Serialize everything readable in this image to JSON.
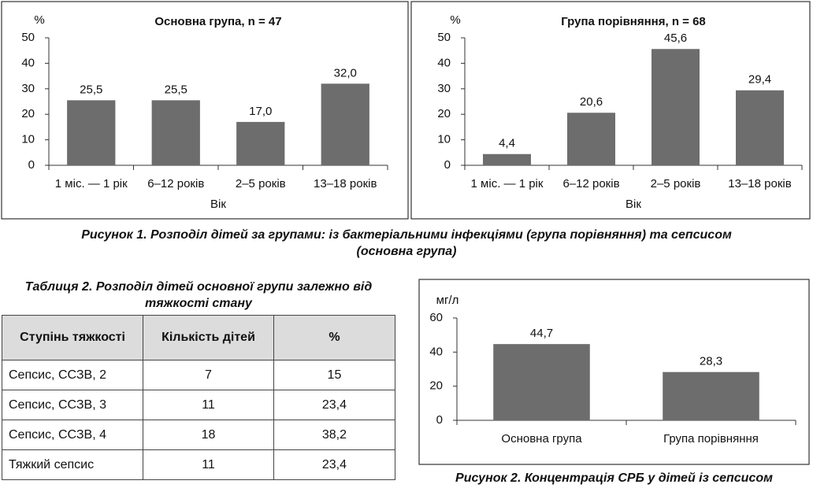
{
  "chart_data": [
    {
      "type": "bar",
      "title": "Основна група, n = 47",
      "y_label": "%",
      "x_label": "Вік",
      "categories": [
        "1 міс. — 1 рік",
        "6–12 років",
        "2–5 років",
        "13–18 років"
      ],
      "values": [
        25.5,
        25.5,
        17.0,
        32.0
      ],
      "value_labels": [
        "25,5",
        "25,5",
        "17,0",
        "32,0"
      ],
      "color": "#6d6d6d",
      "ylim": [
        0,
        50
      ],
      "yticks": [
        0,
        10,
        20,
        30,
        40,
        50
      ]
    },
    {
      "type": "bar",
      "title": "Група порівняння, n = 68",
      "y_label": "%",
      "x_label": "Вік",
      "categories": [
        "1 міс. — 1 рік",
        "6–12 років",
        "2–5 років",
        "13–18 років"
      ],
      "values": [
        4.4,
        20.6,
        45.6,
        29.4
      ],
      "value_labels": [
        "4,4",
        "20,6",
        "45,6",
        "29,4"
      ],
      "color": "#6d6d6d",
      "ylim": [
        0,
        50
      ],
      "yticks": [
        0,
        10,
        20,
        30,
        40,
        50
      ]
    },
    {
      "type": "bar",
      "y_label": "мг/л",
      "categories": [
        "Основна група",
        "Група порівняння"
      ],
      "values": [
        44.7,
        28.3
      ],
      "value_labels": [
        "44,7",
        "28,3"
      ],
      "color": "#6d6d6d",
      "ylim": [
        0,
        60
      ],
      "yticks": [
        0,
        20,
        40,
        60
      ]
    }
  ],
  "figure1_caption": "Рисунок 1. Розподіл дітей за групами: із бактеріальними інфекціями (група порівняння) та сепсисом (основна група)",
  "table": {
    "title": "Таблиця 2. Розподіл дітей основної групи залежно від тяжкості стану",
    "header": [
      "Ступінь тяжкості",
      "Кількість дітей",
      "%"
    ],
    "rows": [
      [
        "Сепсис, ССЗВ, 2",
        "7",
        "15"
      ],
      [
        "Сепсис, ССЗВ, 3",
        "11",
        "23,4"
      ],
      [
        "Сепсис, ССЗВ, 4",
        "18",
        "38,2"
      ],
      [
        "Тяжкий сепсис",
        "11",
        "23,4"
      ]
    ]
  },
  "figure2_caption": "Рисунок 2. Концентрація СРБ у дітей із сепсисом"
}
